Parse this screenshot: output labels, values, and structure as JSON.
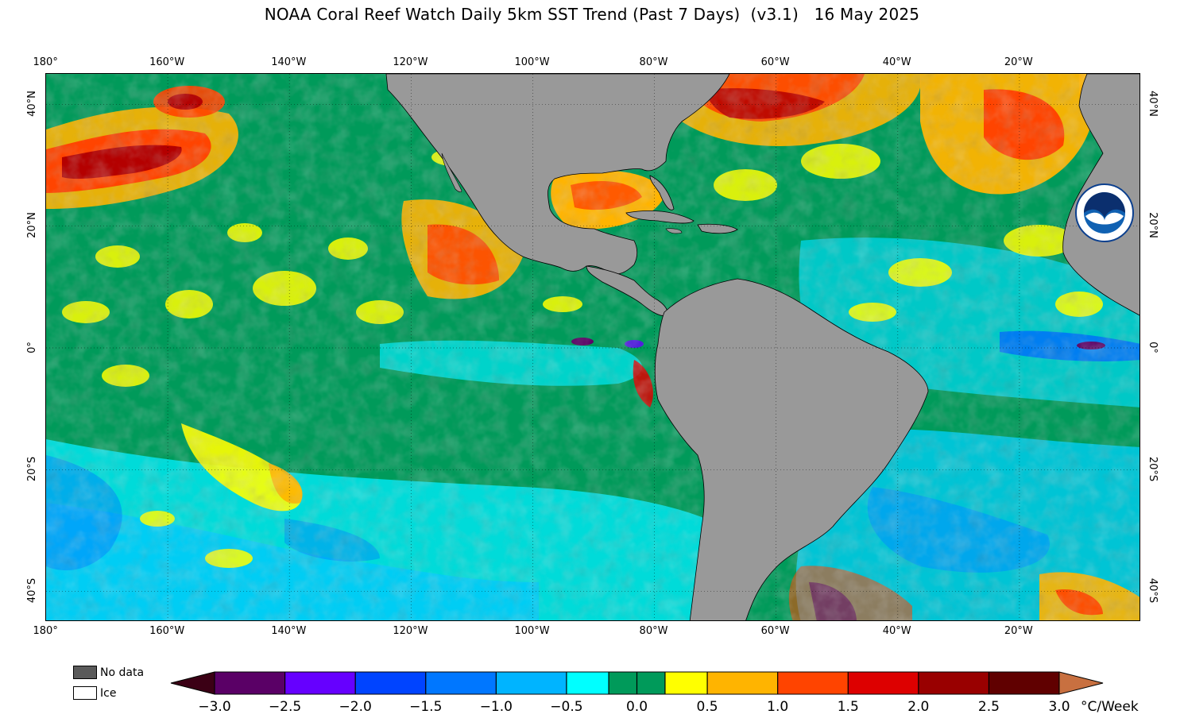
{
  "title": "NOAA Coral Reef Watch Daily 5km SST Trend (Past 7 Days)  (v3.1)   16 May 2025",
  "axes": {
    "lon_ticks": [
      "180°",
      "160°W",
      "140°W",
      "120°W",
      "100°W",
      "80°W",
      "60°W",
      "40°W",
      "20°W"
    ],
    "lat_ticks_left": [
      "40°N",
      "20°N",
      "0°",
      "20°S",
      "40°S"
    ],
    "lat_ticks_right": [
      "40°N",
      "20°N",
      "0°",
      "20°S",
      "40°S"
    ]
  },
  "map_data": {
    "type": "raster-map",
    "variable": "SST Trend (Past 7 Days)",
    "lon_range": [
      -180,
      0
    ],
    "lat_range": [
      -45,
      45
    ],
    "grid": true,
    "land_color": "#999999",
    "logo_icon": "noaa-logo"
  },
  "legend": {
    "no_data_label": "No data",
    "no_data_color": "#5a5a5a",
    "ice_label": "Ice",
    "ice_color": "#ffffff"
  },
  "colorbar": {
    "units": "°C/Week",
    "labels": [
      "−3.0",
      "−2.5",
      "−2.0",
      "−1.5",
      "−1.0",
      "−0.5",
      "0.0",
      "0.5",
      "1.0",
      "1.5",
      "2.0",
      "2.5",
      "3.0"
    ],
    "min_arrow_color": "#3b0015",
    "max_arrow_color": "#c87040",
    "colors": [
      "#5a0066",
      "#6600ff",
      "#0044ff",
      "#0077ff",
      "#00b4ff",
      "#00ffff",
      "#009a5a",
      "#009a5a",
      "#ffff00",
      "#ffb400",
      "#ff4400",
      "#dd0000",
      "#990000",
      "#600000"
    ]
  }
}
